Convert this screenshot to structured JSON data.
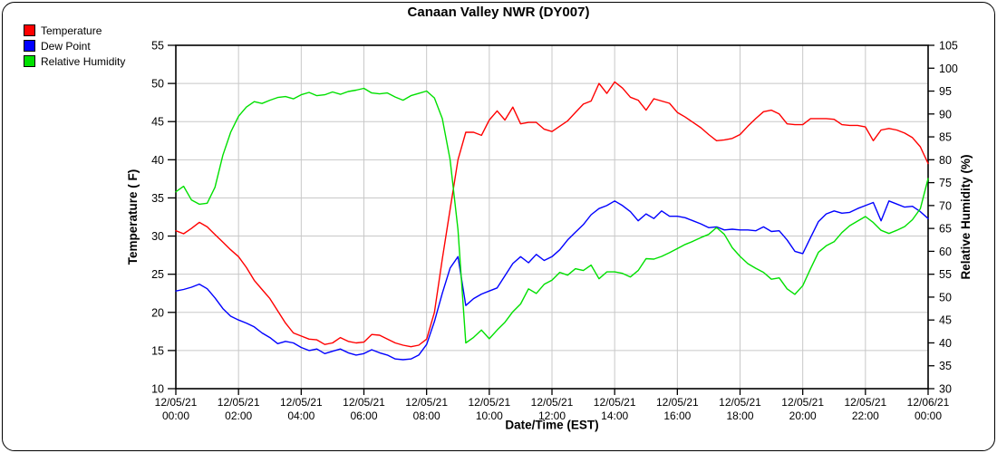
{
  "title": "Canaan Valley NWR (DY007)",
  "legend": {
    "items": [
      {
        "label": "Temperature",
        "color": "#ff0000"
      },
      {
        "label": "Dew Point",
        "color": "#0000ff"
      },
      {
        "label": "Relative Humidity",
        "color": "#00e000"
      }
    ]
  },
  "chart_data": {
    "type": "line",
    "title": "Canaan Valley NWR (DY007)",
    "xlabel": "Date/Time (EST)",
    "ylabel_left": "Temperature ( F)",
    "ylabel_right": "Relative Humidity (%)",
    "ylim_left": [
      10,
      55
    ],
    "ylim_right": [
      30,
      105
    ],
    "yticks_left": [
      10,
      15,
      20,
      25,
      30,
      35,
      40,
      45,
      50,
      55
    ],
    "yticks_right": [
      30,
      35,
      40,
      45,
      50,
      55,
      60,
      65,
      70,
      75,
      80,
      85,
      90,
      95,
      100,
      105
    ],
    "grid": true,
    "x_start_hour": 0,
    "x_end_hour": 24,
    "sample_interval_hours": 0.25,
    "x_ticks": [
      {
        "t": 0,
        "date": "12/05/21",
        "time": "00:00"
      },
      {
        "t": 2,
        "date": "12/05/21",
        "time": "02:00"
      },
      {
        "t": 4,
        "date": "12/05/21",
        "time": "04:00"
      },
      {
        "t": 6,
        "date": "12/05/21",
        "time": "06:00"
      },
      {
        "t": 8,
        "date": "12/05/21",
        "time": "08:00"
      },
      {
        "t": 10,
        "date": "12/05/21",
        "time": "10:00"
      },
      {
        "t": 12,
        "date": "12/05/21",
        "time": "12:00"
      },
      {
        "t": 14,
        "date": "12/05/21",
        "time": "14:00"
      },
      {
        "t": 16,
        "date": "12/05/21",
        "time": "16:00"
      },
      {
        "t": 18,
        "date": "12/05/21",
        "time": "18:00"
      },
      {
        "t": 20,
        "date": "12/05/21",
        "time": "20:00"
      },
      {
        "t": 22,
        "date": "12/05/21",
        "time": "22:00"
      },
      {
        "t": 24,
        "date": "12/06/21",
        "time": "00:00"
      }
    ],
    "series": [
      {
        "name": "Temperature",
        "axis": "left",
        "color": "#ff0000",
        "values": [
          30.7,
          30.3,
          31.0,
          31.8,
          31.2,
          30.2,
          29.2,
          28.2,
          27.3,
          25.9,
          24.2,
          23.0,
          21.8,
          20.2,
          18.6,
          17.3,
          16.9,
          16.5,
          16.4,
          15.8,
          16.0,
          16.7,
          16.2,
          16.0,
          16.1,
          17.1,
          17.0,
          16.5,
          16.0,
          15.7,
          15.5,
          15.7,
          16.5,
          20.0,
          27.0,
          33.5,
          40.0,
          43.6,
          43.6,
          43.2,
          45.2,
          46.4,
          45.2,
          46.9,
          44.7,
          44.9,
          44.9,
          44.0,
          43.7,
          44.4,
          45.1,
          46.2,
          47.3,
          47.7,
          50.0,
          48.7,
          50.2,
          49.4,
          48.2,
          47.8,
          46.5,
          48.0,
          47.7,
          47.4,
          46.2,
          45.6,
          44.9,
          44.2,
          43.3,
          42.5,
          42.6,
          42.8,
          43.3,
          44.4,
          45.4,
          46.3,
          46.5,
          46.0,
          44.7,
          44.6,
          44.6,
          45.4,
          45.4,
          45.4,
          45.3,
          44.6,
          44.5,
          44.5,
          44.3,
          42.5,
          43.9,
          44.1,
          43.9,
          43.5,
          42.9,
          41.7,
          39.5
        ]
      },
      {
        "name": "Dew Point",
        "axis": "left",
        "color": "#0000ff",
        "values": [
          22.8,
          23.0,
          23.3,
          23.7,
          23.1,
          21.9,
          20.5,
          19.5,
          19.0,
          18.6,
          18.1,
          17.3,
          16.7,
          15.9,
          16.2,
          16.0,
          15.4,
          15.0,
          15.2,
          14.6,
          14.9,
          15.2,
          14.7,
          14.4,
          14.6,
          15.1,
          14.7,
          14.4,
          13.9,
          13.8,
          13.9,
          14.4,
          15.8,
          18.8,
          22.5,
          25.8,
          27.3,
          20.9,
          21.8,
          22.4,
          22.8,
          23.2,
          24.8,
          26.4,
          27.3,
          26.5,
          27.6,
          26.8,
          27.3,
          28.2,
          29.5,
          30.5,
          31.5,
          32.8,
          33.6,
          34.0,
          34.6,
          34.0,
          33.2,
          32.0,
          32.9,
          32.3,
          33.3,
          32.6,
          32.6,
          32.4,
          32.0,
          31.6,
          31.1,
          31.2,
          30.8,
          30.9,
          30.8,
          30.8,
          30.7,
          31.2,
          30.6,
          30.7,
          29.5,
          28.0,
          27.7,
          29.8,
          31.9,
          32.9,
          33.3,
          33.0,
          33.1,
          33.6,
          34.0,
          34.4,
          32.0,
          34.6,
          34.2,
          33.8,
          33.9,
          33.2,
          32.3
        ]
      },
      {
        "name": "Relative Humidity",
        "axis": "right",
        "color": "#00e000",
        "values": [
          73.0,
          74.2,
          71.2,
          70.3,
          70.5,
          74.0,
          81.0,
          86.0,
          89.5,
          91.5,
          92.7,
          92.3,
          93.0,
          93.6,
          93.8,
          93.3,
          94.2,
          94.7,
          94.0,
          94.2,
          94.8,
          94.3,
          94.9,
          95.2,
          95.6,
          94.6,
          94.4,
          94.6,
          93.7,
          93.0,
          94.0,
          94.5,
          95.0,
          93.5,
          89.0,
          80.0,
          64.7,
          40.0,
          41.2,
          42.8,
          40.9,
          42.8,
          44.5,
          46.8,
          48.5,
          51.8,
          50.8,
          52.8,
          53.7,
          55.4,
          54.8,
          56.2,
          55.8,
          57.0,
          54.0,
          55.5,
          55.5,
          55.2,
          54.4,
          55.8,
          58.4,
          58.3,
          58.9,
          59.7,
          60.6,
          61.5,
          62.2,
          63.0,
          63.7,
          65.2,
          63.7,
          60.8,
          58.9,
          57.3,
          56.3,
          55.4,
          53.9,
          54.2,
          51.8,
          50.6,
          52.5,
          56.2,
          59.8,
          61.2,
          62.1,
          64.1,
          65.6,
          66.6,
          67.6,
          66.3,
          64.6,
          63.9,
          64.6,
          65.4,
          66.9,
          69.3,
          75.9
        ]
      }
    ]
  }
}
